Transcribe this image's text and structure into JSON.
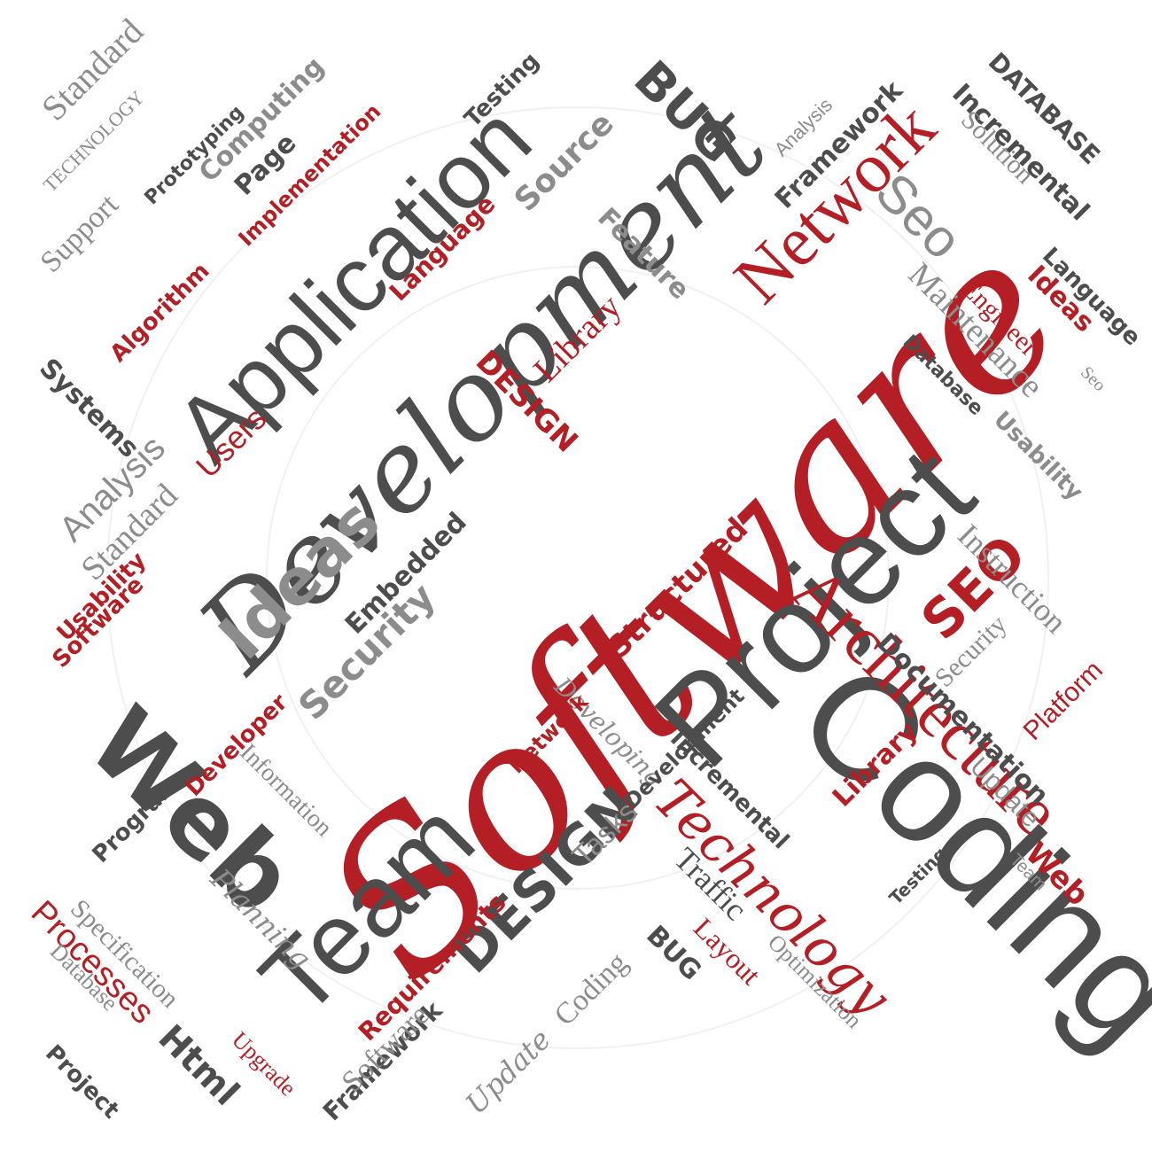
{
  "colors": {
    "red": "#b31f24",
    "dark": "#4d4d4d",
    "gray": "#8c8c8c",
    "background": "#ffffff"
  },
  "words": {
    "w1": "Software",
    "w2": "Development",
    "w3": "Project",
    "w4": "Coding",
    "w5": "Application",
    "w6": "Architecture",
    "w7": "Network",
    "w8": "Team",
    "w9": "Web",
    "w10": "Technology",
    "w11": "Ideas",
    "w12": "DESIGN",
    "w13": "Seo",
    "w14": "SEO",
    "w15": "BUG",
    "w16": "Security",
    "w17": "Documentation",
    "w18": "Instruction",
    "w19": "Maintenance",
    "w20": "DATABASE",
    "w21": "Processes",
    "w22": "Structured",
    "w23": "Library",
    "w24": "Users",
    "w25": "Analysis",
    "w26": "Html",
    "w27": "Standard",
    "w28": "Support",
    "w29": "Systems",
    "w30": "Framework",
    "w31": "Incremental",
    "w32": "Engineer",
    "w33": "Platform",
    "w34": "Layout",
    "w35": "Traffic",
    "w36": "Planning",
    "w37": "Testing",
    "w38": "Program",
    "w39": "Specification",
    "w40": "Information",
    "w41": "Tasks",
    "w42": "Update",
    "w43": "Upgrade",
    "w44": "Solution",
    "w45": "Requirements",
    "w46": "Algorithm",
    "w47": "Computing",
    "w48": "Prototyping",
    "w49": "Embedded",
    "w50": "Optimization",
    "w51": "Feature",
    "w52": "Language",
    "w53": "Usability",
    "w54": "Page",
    "w55": "Source",
    "w56": "Developer",
    "w57": "TECHNOLOGY",
    "w58": "Database",
    "w59": "Developing",
    "w60": "Implementation"
  }
}
